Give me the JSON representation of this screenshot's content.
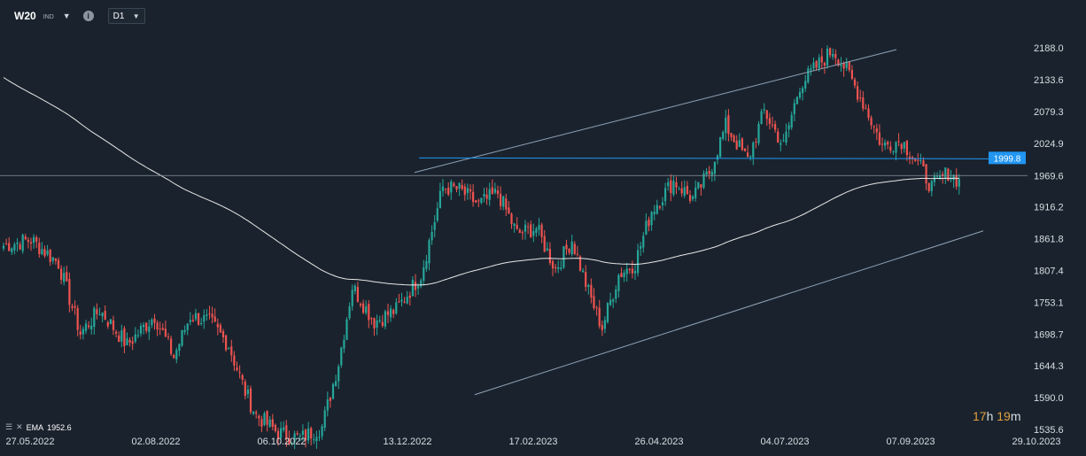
{
  "header": {
    "symbol": "W20",
    "symbol_type": "IND",
    "timeframe": "D1"
  },
  "indicator": {
    "name": "EMA",
    "value": "1952.6"
  },
  "countdown": {
    "hours": "17",
    "hours_unit": "h",
    "minutes": "19",
    "minutes_unit": "m"
  },
  "chart_data": {
    "type": "candlestick",
    "y_ticks": [
      "2188.0",
      "2133.6",
      "2079.3",
      "2024.9",
      "1969.6",
      "1916.2",
      "1861.8",
      "1807.4",
      "1753.1",
      "1698.7",
      "1644.3",
      "1590.0",
      "1535.6"
    ],
    "ylim": [
      1535.6,
      2188.0
    ],
    "x_ticks": [
      "27.05.2022",
      "02.08.2022",
      "06.10.2022",
      "13.12.2022",
      "17.02.2023",
      "26.04.2023",
      "04.07.2023",
      "07.09.2023",
      "29.10.2023"
    ],
    "current_price": {
      "value": 1969.6,
      "label": "1969.6"
    },
    "level_line": {
      "value": 1999.8,
      "label": "1999.8",
      "color": "#2196f3"
    },
    "colors": {
      "up": "#26a69a",
      "down": "#ef5350",
      "ema": "#e8e8e8",
      "channel": "#8fa3b8"
    },
    "ema_period_label": "EMA",
    "channel": {
      "upper": [
        [
          "13.12.2022",
          1975
        ],
        [
          "04.07.2023",
          2180
        ],
        [
          "29.10.2023",
          2245
        ]
      ],
      "lower": [
        [
          "17.02.2023",
          1595
        ],
        [
          "29.10.2023",
          1875
        ]
      ]
    },
    "anchors": [
      [
        0,
        1850
      ],
      [
        10,
        1860
      ],
      [
        20,
        1820
      ],
      [
        28,
        1700
      ],
      [
        35,
        1740
      ],
      [
        45,
        1680
      ],
      [
        55,
        1730
      ],
      [
        62,
        1660
      ],
      [
        68,
        1730
      ],
      [
        75,
        1720
      ],
      [
        82,
        1680
      ],
      [
        88,
        1600
      ],
      [
        92,
        1560
      ],
      [
        100,
        1530
      ],
      [
        108,
        1520
      ],
      [
        116,
        1540
      ],
      [
        122,
        1650
      ],
      [
        127,
        1780
      ],
      [
        135,
        1720
      ],
      [
        143,
        1740
      ],
      [
        152,
        1800
      ],
      [
        160,
        1950
      ],
      [
        166,
        1945
      ],
      [
        173,
        1920
      ],
      [
        180,
        1940
      ],
      [
        187,
        1870
      ],
      [
        194,
        1880
      ],
      [
        201,
        1810
      ],
      [
        207,
        1860
      ],
      [
        213,
        1770
      ],
      [
        218,
        1710
      ],
      [
        224,
        1800
      ],
      [
        230,
        1820
      ],
      [
        236,
        1910
      ],
      [
        244,
        1960
      ],
      [
        251,
        1930
      ],
      [
        257,
        1975
      ],
      [
        263,
        2055
      ],
      [
        271,
        1995
      ],
      [
        277,
        2080
      ],
      [
        284,
        2020
      ],
      [
        290,
        2125
      ],
      [
        296,
        2155
      ],
      [
        302,
        2185
      ],
      [
        307,
        2150
      ],
      [
        314,
        2085
      ],
      [
        320,
        2020
      ],
      [
        327,
        2030
      ],
      [
        333,
        1990
      ],
      [
        338,
        1950
      ],
      [
        344,
        1975
      ],
      [
        348,
        1960
      ]
    ],
    "total_bars": 349
  }
}
